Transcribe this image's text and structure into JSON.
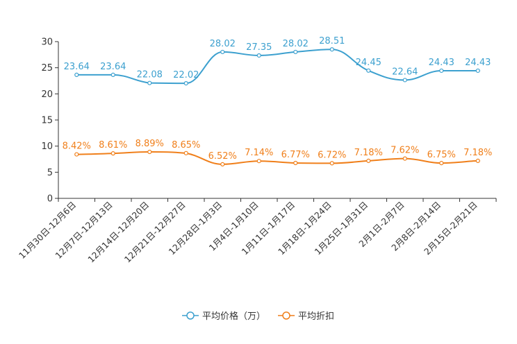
{
  "chart_data": {
    "type": "line",
    "title": "",
    "xlabel": "",
    "ylabel": "",
    "ylim": [
      0,
      30
    ],
    "yticks": [
      0,
      5,
      10,
      15,
      20,
      25,
      30
    ],
    "categories": [
      "11月30日-12月6日",
      "12月7日-12月13日",
      "12月14日-12月20日",
      "12月21日-12月27日",
      "12月28日-1月3日",
      "1月4日-1月10日",
      "1月11日-1月17日",
      "1月18日-1月24日",
      "1月25日-1月31日",
      "2月1日-2月7日",
      "2月8日-2月14日",
      "2月15日-2月21日"
    ],
    "series": [
      {
        "name": "平均价格（万）",
        "color": "#3ca0cf",
        "values": [
          23.64,
          23.64,
          22.08,
          22.02,
          28.02,
          27.35,
          28.02,
          28.51,
          24.45,
          22.64,
          24.43,
          24.43
        ],
        "labels": [
          "23.64",
          "23.64",
          "22.08",
          "22.02",
          "28.02",
          "27.35",
          "28.02",
          "28.51",
          "24.45",
          "22.64",
          "24.43",
          "24.43"
        ]
      },
      {
        "name": "平均折扣",
        "color": "#f07f1a",
        "values": [
          8.42,
          8.61,
          8.89,
          8.65,
          6.52,
          7.14,
          6.77,
          6.72,
          7.18,
          7.62,
          6.75,
          7.18
        ],
        "labels": [
          "8.42%",
          "8.61%",
          "8.89%",
          "8.65%",
          "6.52%",
          "7.14%",
          "6.77%",
          "6.72%",
          "7.18%",
          "7.62%",
          "6.75%",
          "7.18%"
        ]
      }
    ],
    "legend_position": "bottom-center",
    "grid": false
  }
}
